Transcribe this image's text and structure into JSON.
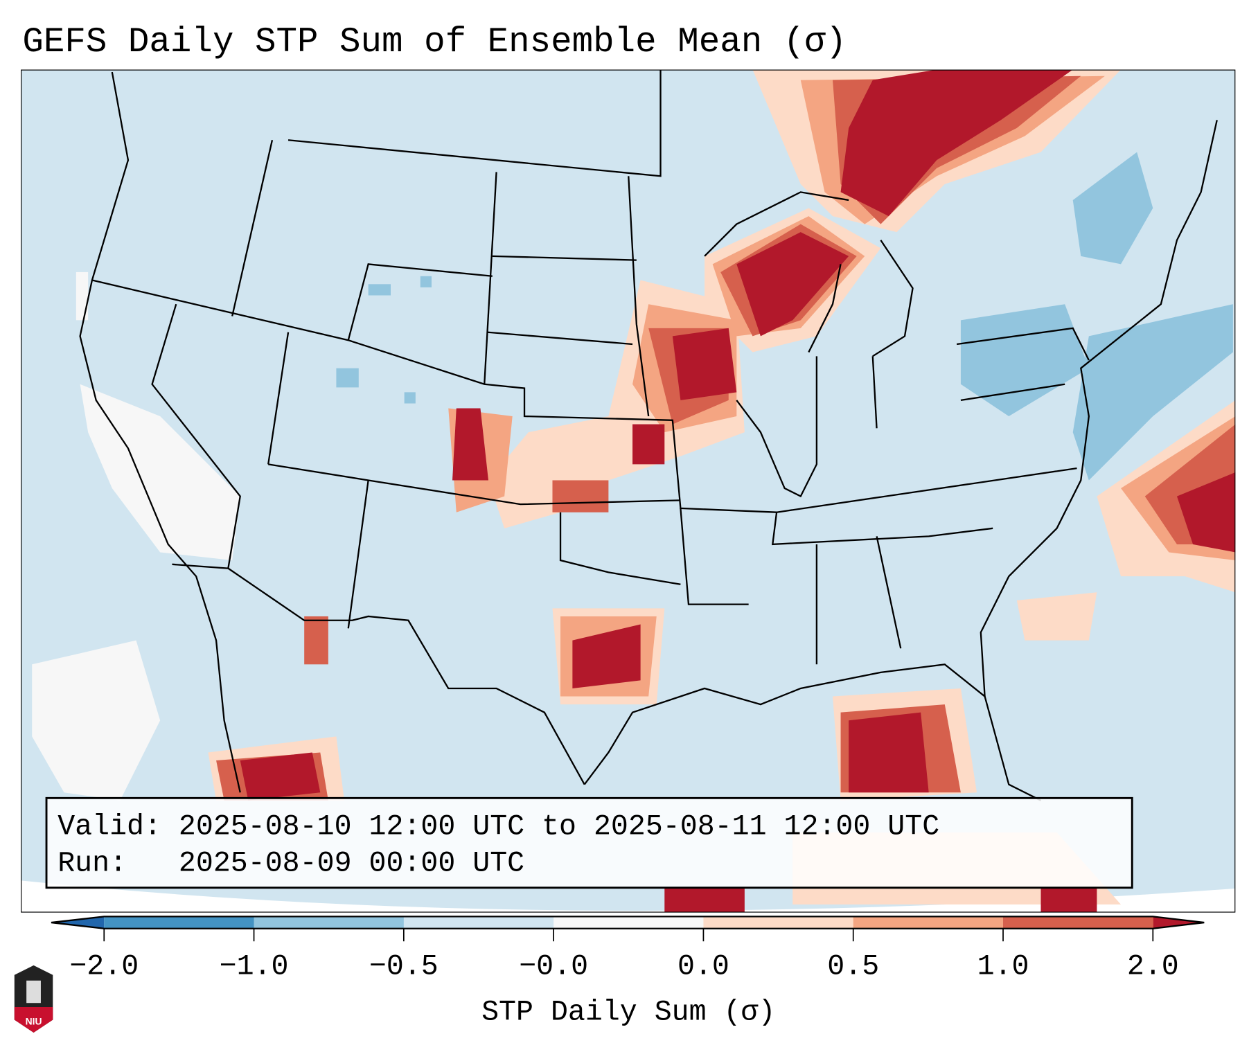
{
  "title": "GEFS Daily STP Sum of Ensemble Mean (σ)",
  "info_box": {
    "valid": "Valid: 2025-08-10 12:00 UTC to 2025-08-11 12:00 UTC",
    "run": "Run:   2025-08-09 00:00 UTC"
  },
  "colorbar": {
    "label": "STP Daily Sum (σ)",
    "ticks": [
      "−2.0",
      "−1.0",
      "−0.5",
      "−0.0",
      "0.0",
      "0.5",
      "1.0",
      "2.0"
    ],
    "colors": [
      "#4393c3",
      "#92c5de",
      "#d1e5f0",
      "#f7f7f7",
      "#fddbc7",
      "#f4a582",
      "#d6604d"
    ],
    "extend_low_color": "#2166ac",
    "extend_high_color": "#b2182b"
  },
  "logo": {
    "text": "NIU"
  }
}
